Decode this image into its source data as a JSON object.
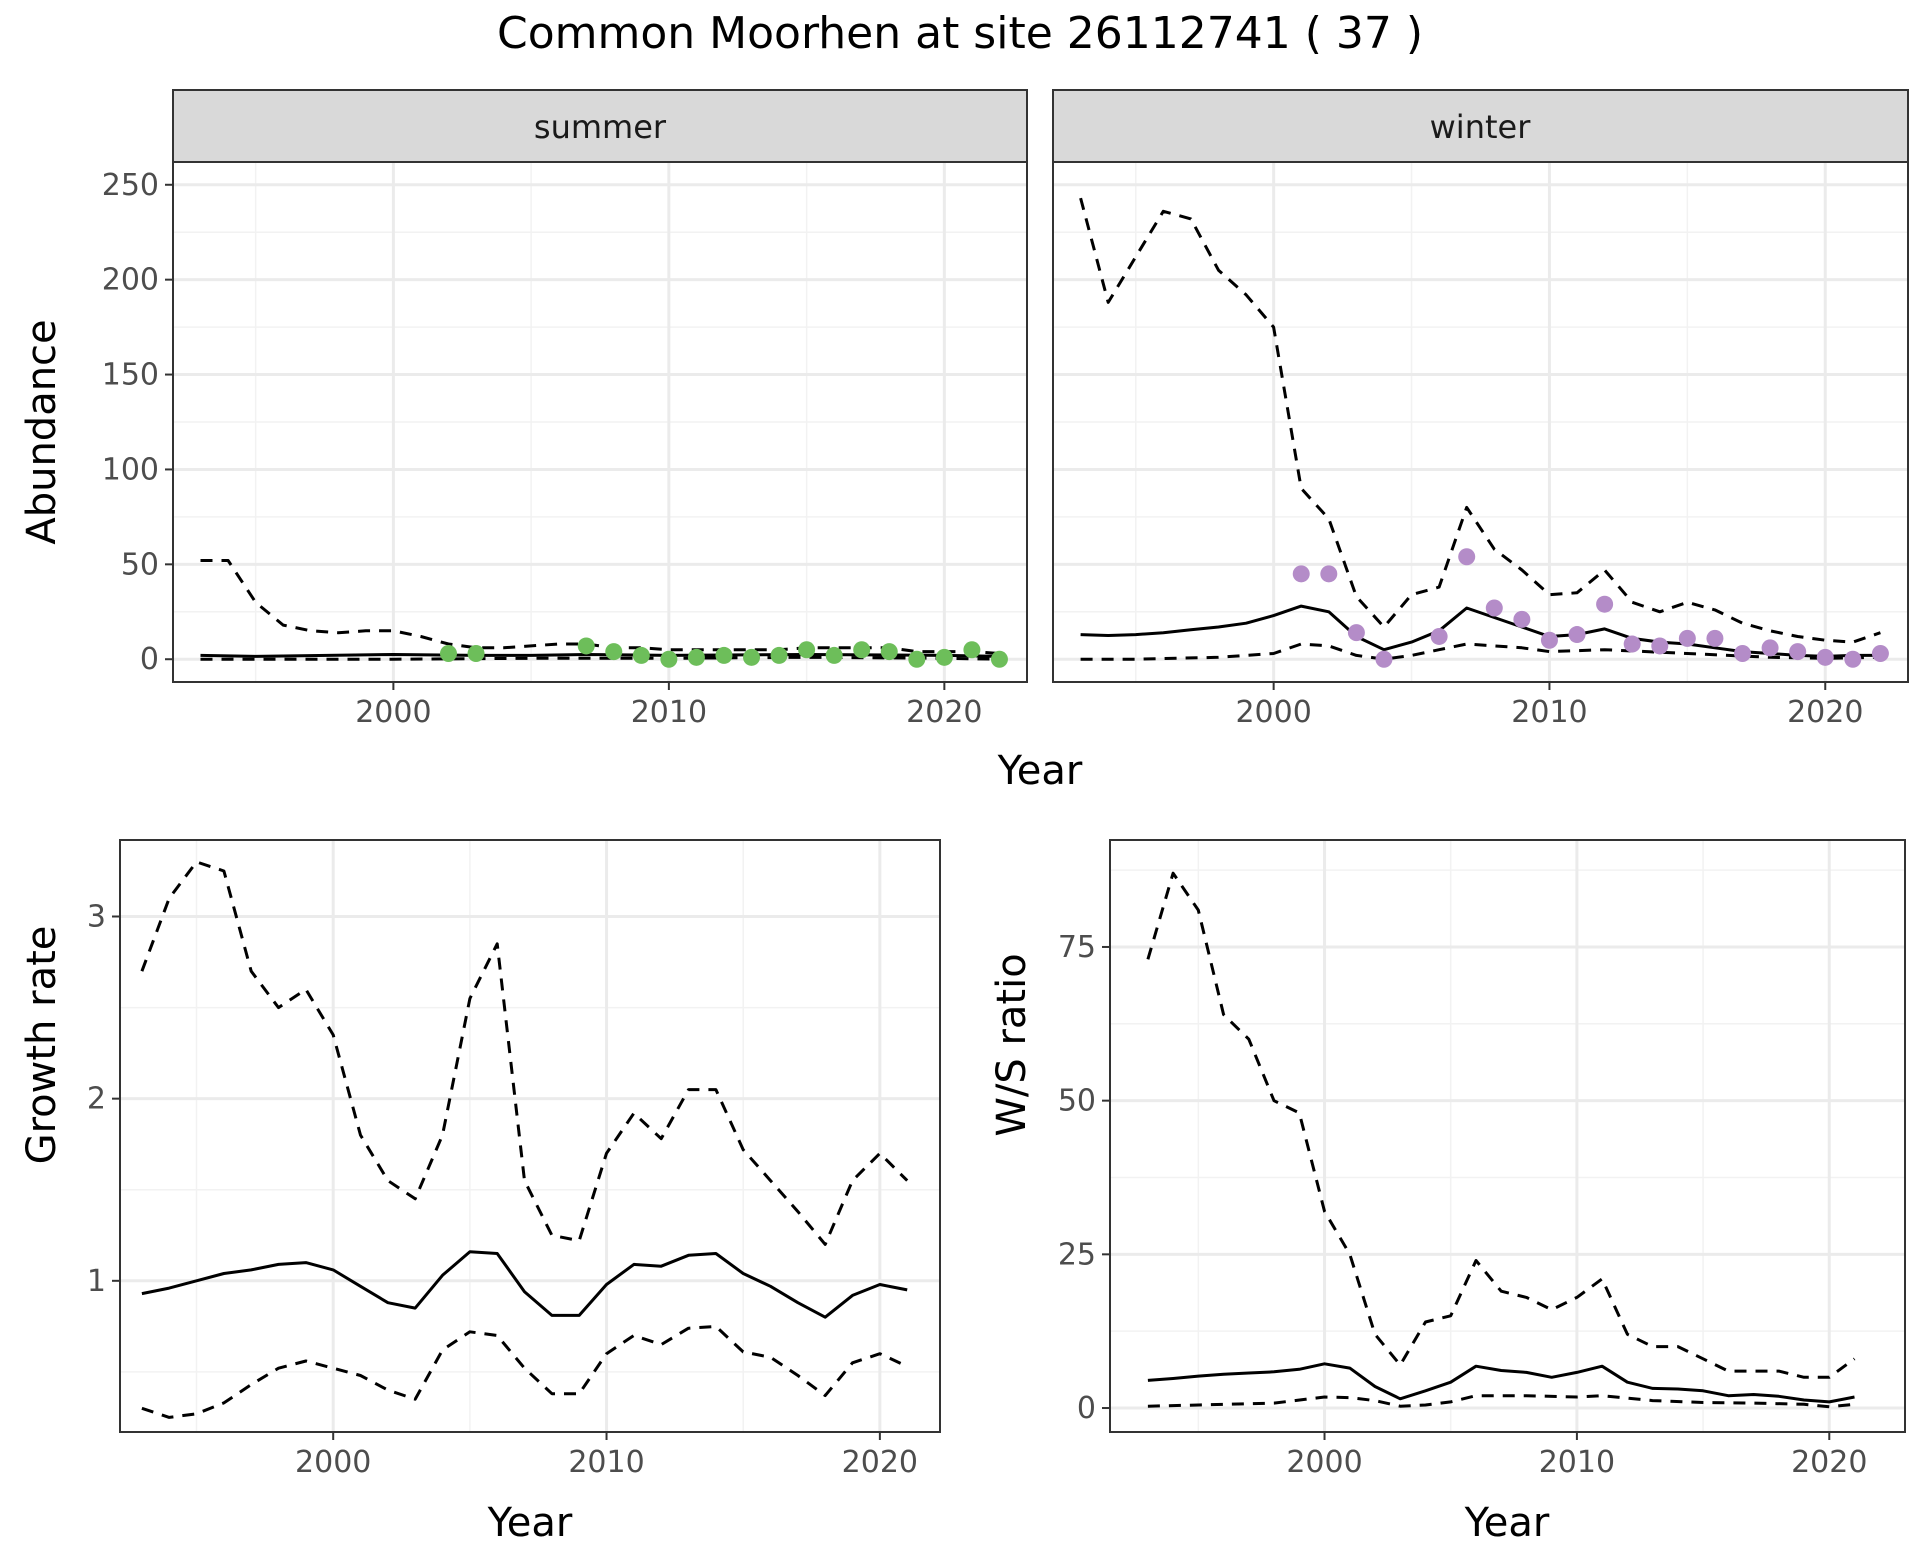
{
  "title": "Common Moorhen at site 26112741 ( 37 )",
  "colors": {
    "summer_points": "#6DBE5A",
    "winter_points": "#B48CC8",
    "line": "#000000",
    "grid": "#ebebeb",
    "strip_bg": "#d9d9d9"
  },
  "chart_data": [
    {
      "type": "line",
      "panel": "summer",
      "strip_label": "summer",
      "xlabel": "Year",
      "ylabel": "Abundance",
      "xlim": [
        1992,
        2023
      ],
      "ylim": [
        -12,
        262
      ],
      "xticks": [
        2000,
        2010,
        2020
      ],
      "yticks": [
        0,
        50,
        100,
        150,
        200,
        250
      ],
      "series": [
        {
          "role": "estimate",
          "style": "solid",
          "x": [
            1993,
            1995,
            2000,
            2003,
            2005,
            2007,
            2010,
            2015,
            2020,
            2022
          ],
          "y": [
            2,
            1.5,
            2.5,
            2,
            2,
            2.5,
            2,
            2.5,
            2,
            1.5
          ]
        },
        {
          "role": "upper",
          "style": "dashed",
          "x": [
            1993,
            1994,
            1995,
            1996,
            1997,
            1998,
            1999,
            2000,
            2001,
            2002,
            2003,
            2004,
            2005,
            2006,
            2007,
            2008,
            2009,
            2010,
            2011,
            2012,
            2013,
            2014,
            2015,
            2016,
            2017,
            2018,
            2019,
            2020,
            2021,
            2022
          ],
          "y": [
            52,
            52,
            30,
            18,
            15,
            14,
            15,
            15,
            12,
            8,
            6,
            6,
            7,
            8,
            8,
            6,
            6,
            5,
            5,
            5,
            5,
            5,
            6,
            6,
            6,
            6,
            4,
            4,
            4,
            3
          ]
        },
        {
          "role": "lower",
          "style": "dashed",
          "x": [
            1993,
            2000,
            2005,
            2010,
            2015,
            2020,
            2022
          ],
          "y": [
            0,
            0,
            0.5,
            0.5,
            1,
            0.5,
            0
          ]
        }
      ],
      "points": {
        "x": [
          2002,
          2003,
          2007,
          2008,
          2009,
          2010,
          2011,
          2012,
          2013,
          2014,
          2015,
          2016,
          2017,
          2018,
          2019,
          2020,
          2021,
          2022
        ],
        "y": [
          3,
          3,
          7,
          4,
          2,
          0,
          1,
          2,
          1,
          2,
          5,
          2,
          5,
          4,
          0,
          1,
          5,
          0
        ]
      }
    },
    {
      "type": "line",
      "panel": "winter",
      "strip_label": "winter",
      "xlabel": "Year",
      "ylabel": "Abundance",
      "xlim": [
        1992,
        2023
      ],
      "ylim": [
        -12,
        262
      ],
      "xticks": [
        2000,
        2010,
        2020
      ],
      "yticks": [
        0,
        50,
        100,
        150,
        200,
        250
      ],
      "series": [
        {
          "role": "estimate",
          "style": "solid",
          "x": [
            1993,
            1994,
            1995,
            1996,
            1997,
            1998,
            1999,
            2000,
            2001,
            2002,
            2003,
            2004,
            2005,
            2006,
            2007,
            2008,
            2009,
            2010,
            2011,
            2012,
            2013,
            2014,
            2015,
            2016,
            2017,
            2018,
            2019,
            2020,
            2021,
            2022
          ],
          "y": [
            13,
            12.5,
            13,
            14,
            15.5,
            17,
            19,
            23,
            28,
            25,
            12,
            5,
            9,
            15,
            27,
            22,
            17,
            12,
            13,
            16,
            11,
            9,
            8,
            6,
            4,
            3,
            2,
            1.5,
            2,
            2
          ]
        },
        {
          "role": "upper",
          "style": "dashed",
          "x": [
            1993,
            1994,
            1995,
            1996,
            1997,
            1998,
            1999,
            2000,
            2001,
            2002,
            2003,
            2004,
            2005,
            2006,
            2007,
            2008,
            2009,
            2010,
            2011,
            2012,
            2013,
            2014,
            2015,
            2016,
            2017,
            2018,
            2019,
            2020,
            2021,
            2022
          ],
          "y": [
            243,
            188,
            212,
            236,
            232,
            205,
            192,
            175,
            90,
            74,
            33,
            17,
            34,
            38,
            80,
            58,
            47,
            34,
            35,
            47,
            30,
            25,
            30,
            26,
            19,
            15,
            12,
            10,
            9,
            14
          ]
        },
        {
          "role": "lower",
          "style": "dashed",
          "x": [
            1993,
            1995,
            1998,
            2000,
            2001,
            2002,
            2003,
            2004,
            2005,
            2006,
            2007,
            2008,
            2009,
            2010,
            2012,
            2015,
            2018,
            2020,
            2022
          ],
          "y": [
            0,
            0,
            1,
            3,
            8,
            7,
            2,
            0,
            2,
            5,
            8,
            7,
            6,
            4,
            5,
            3,
            1,
            0.5,
            1
          ]
        }
      ],
      "points": {
        "x": [
          2001,
          2002,
          2003,
          2004,
          2006,
          2007,
          2008,
          2009,
          2010,
          2011,
          2012,
          2013,
          2014,
          2015,
          2016,
          2017,
          2018,
          2019,
          2020,
          2021,
          2022
        ],
        "y": [
          45,
          45,
          14,
          0,
          12,
          54,
          27,
          21,
          10,
          13,
          29,
          8,
          7,
          11,
          11,
          3,
          6,
          4,
          1,
          0,
          3
        ]
      }
    },
    {
      "type": "line",
      "panel": "growth",
      "xlabel": "Year",
      "ylabel": "Growth rate",
      "xlim": [
        1992.2,
        2022.2
      ],
      "ylim": [
        0.17,
        3.42
      ],
      "xticks": [
        2000,
        2010,
        2020
      ],
      "yticks": [
        1,
        2,
        3
      ],
      "series": [
        {
          "role": "estimate",
          "style": "solid",
          "x": [
            1993,
            1994,
            1995,
            1996,
            1997,
            1998,
            1999,
            2000,
            2001,
            2002,
            2003,
            2004,
            2005,
            2006,
            2007,
            2008,
            2009,
            2010,
            2011,
            2012,
            2013,
            2014,
            2015,
            2016,
            2017,
            2018,
            2019,
            2020,
            2021
          ],
          "y": [
            0.93,
            0.96,
            1.0,
            1.04,
            1.06,
            1.09,
            1.1,
            1.06,
            0.97,
            0.88,
            0.85,
            1.03,
            1.16,
            1.15,
            0.94,
            0.81,
            0.81,
            0.98,
            1.09,
            1.08,
            1.14,
            1.15,
            1.04,
            0.97,
            0.88,
            0.8,
            0.92,
            0.98,
            0.95
          ]
        },
        {
          "role": "upper",
          "style": "dashed",
          "x": [
            1993,
            1994,
            1995,
            1996,
            1997,
            1998,
            1999,
            2000,
            2001,
            2002,
            2003,
            2004,
            2005,
            2006,
            2007,
            2008,
            2009,
            2010,
            2011,
            2012,
            2013,
            2014,
            2015,
            2016,
            2017,
            2018,
            2019,
            2020,
            2021
          ],
          "y": [
            2.7,
            3.1,
            3.3,
            3.25,
            2.7,
            2.5,
            2.6,
            2.35,
            1.8,
            1.55,
            1.45,
            1.8,
            2.55,
            2.85,
            1.55,
            1.25,
            1.22,
            1.7,
            1.92,
            1.78,
            2.05,
            2.05,
            1.72,
            1.55,
            1.38,
            1.2,
            1.55,
            1.7,
            1.55
          ]
        },
        {
          "role": "lower",
          "style": "dashed",
          "x": [
            1993,
            1994,
            1995,
            1996,
            1997,
            1998,
            1999,
            2000,
            2001,
            2002,
            2003,
            2004,
            2005,
            2006,
            2007,
            2008,
            2009,
            2010,
            2011,
            2012,
            2013,
            2014,
            2015,
            2016,
            2017,
            2018,
            2019,
            2020,
            2021
          ],
          "y": [
            0.3,
            0.25,
            0.27,
            0.33,
            0.43,
            0.52,
            0.56,
            0.52,
            0.48,
            0.4,
            0.35,
            0.62,
            0.72,
            0.7,
            0.52,
            0.38,
            0.38,
            0.6,
            0.7,
            0.65,
            0.74,
            0.75,
            0.61,
            0.58,
            0.48,
            0.37,
            0.55,
            0.6,
            0.53
          ]
        }
      ]
    },
    {
      "type": "line",
      "panel": "ratio",
      "xlabel": "Year",
      "ylabel": "W/S ratio",
      "xlim": [
        1991.5,
        2023.0
      ],
      "ylim": [
        -3.9,
        92.4
      ],
      "xticks": [
        2000,
        2010,
        2020
      ],
      "yticks": [
        0,
        25,
        50,
        75
      ],
      "series": [
        {
          "role": "estimate",
          "style": "solid",
          "x": [
            1993,
            1994,
            1995,
            1996,
            1997,
            1998,
            1999,
            2000,
            2001,
            2002,
            2003,
            2004,
            2005,
            2006,
            2007,
            2008,
            2009,
            2010,
            2011,
            2012,
            2013,
            2014,
            2015,
            2016,
            2017,
            2018,
            2019,
            2020,
            2021
          ],
          "y": [
            4.5,
            4.8,
            5.2,
            5.5,
            5.7,
            5.9,
            6.3,
            7.2,
            6.5,
            3.5,
            1.5,
            2.8,
            4.2,
            6.8,
            6.1,
            5.8,
            5.0,
            5.8,
            6.8,
            4.2,
            3.2,
            3.1,
            2.8,
            2.0,
            2.2,
            1.9,
            1.3,
            1.0,
            1.8
          ]
        },
        {
          "role": "upper",
          "style": "dashed",
          "x": [
            1993,
            1994,
            1995,
            1996,
            1997,
            1998,
            1999,
            2000,
            2001,
            2002,
            2003,
            2004,
            2005,
            2006,
            2007,
            2008,
            2009,
            2010,
            2011,
            2012,
            2013,
            2014,
            2015,
            2016,
            2017,
            2018,
            2019,
            2020,
            2021
          ],
          "y": [
            73,
            87,
            81,
            64,
            60,
            50,
            48,
            32,
            25,
            12,
            7,
            14,
            15,
            24,
            19,
            18,
            16,
            18,
            21,
            12,
            10,
            10,
            8,
            6,
            6,
            6,
            5,
            5,
            8
          ]
        },
        {
          "role": "lower",
          "style": "dashed",
          "x": [
            1993,
            1995,
            1998,
            2000,
            2001,
            2002,
            2003,
            2004,
            2005,
            2006,
            2008,
            2010,
            2011,
            2013,
            2015,
            2017,
            2019,
            2020,
            2021
          ],
          "y": [
            0.3,
            0.5,
            0.8,
            1.8,
            1.7,
            1.2,
            0.3,
            0.5,
            1.0,
            2.0,
            2.0,
            1.8,
            2.0,
            1.2,
            0.9,
            0.8,
            0.6,
            0.2,
            0.6
          ]
        }
      ]
    }
  ]
}
